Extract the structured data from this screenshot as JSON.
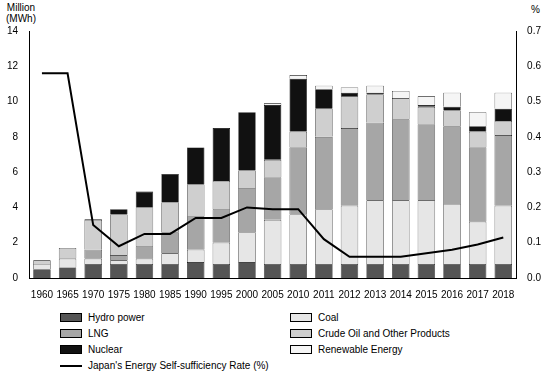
{
  "chart_data": {
    "type": "bar",
    "stacked": true,
    "ylabel": [
      "Million",
      "(MWh)"
    ],
    "y2label": "%",
    "categories": [
      "1960",
      "1965",
      "1970",
      "1975",
      "1980",
      "1985",
      "1990",
      "1995",
      "2000",
      "2005",
      "2010",
      "2011",
      "2012",
      "2013",
      "2014",
      "2015",
      "2016",
      "2017",
      "2018"
    ],
    "series": [
      {
        "name": "Hydro power",
        "type": "bar",
        "color": "#555555",
        "values": [
          0.5,
          0.6,
          0.8,
          0.8,
          0.8,
          0.8,
          0.9,
          0.8,
          0.9,
          0.8,
          0.8,
          0.8,
          0.8,
          0.8,
          0.8,
          0.8,
          0.8,
          0.8,
          0.8
        ]
      },
      {
        "name": "Coal",
        "type": "bar",
        "color": "#e6e6e6",
        "values": [
          0.3,
          0.5,
          0.3,
          0.2,
          0.3,
          0.6,
          0.7,
          1.2,
          1.7,
          2.5,
          2.8,
          3.1,
          3.3,
          3.6,
          3.6,
          3.6,
          3.4,
          2.4,
          3.3
        ]
      },
      {
        "name": "LNG",
        "type": "bar",
        "color": "#a6a6a6",
        "values": [
          0,
          0,
          0.5,
          0.3,
          0.7,
          1.2,
          1.9,
          1.9,
          2.5,
          2.4,
          3.8,
          4.1,
          4.4,
          4.4,
          4.6,
          4.3,
          4.4,
          4.2,
          4.0
        ]
      },
      {
        "name": "Crude Oil and Other Products",
        "type": "bar",
        "color": "#cfcfcf",
        "values": [
          0.2,
          0.6,
          1.7,
          2.3,
          2.2,
          1.7,
          1.8,
          1.6,
          1.0,
          1.0,
          0.9,
          1.6,
          1.8,
          1.6,
          1.2,
          1.0,
          0.9,
          0.9,
          0.8
        ]
      },
      {
        "name": "Nuclear",
        "type": "bar",
        "color": "#111111",
        "values": [
          0,
          0,
          0.05,
          0.3,
          0.9,
          1.6,
          2.1,
          3.0,
          3.3,
          3.1,
          3.0,
          1.1,
          0.2,
          0.1,
          0,
          0.1,
          0.2,
          0.3,
          0.7
        ]
      },
      {
        "name": "Renewable Energy",
        "type": "bar",
        "color": "#f5f5f5",
        "values": [
          0,
          0,
          0,
          0,
          0,
          0,
          0,
          0,
          0,
          0.1,
          0.2,
          0.2,
          0.3,
          0.4,
          0.4,
          0.5,
          0.8,
          0.8,
          0.9
        ]
      },
      {
        "name": "Japan's Energy Self-sufficiency Rate (%)",
        "type": "line",
        "axis": "y2",
        "color": "#000000",
        "line_style": "solid",
        "values": [
          0.58,
          0.58,
          0.15,
          0.09,
          0.125,
          0.125,
          0.17,
          0.17,
          0.2,
          0.195,
          0.195,
          0.11,
          0.06,
          0.06,
          0.06,
          0.07,
          0.08,
          0.095,
          0.115
        ]
      }
    ],
    "ylim": [
      0,
      14
    ],
    "yticks": [
      0,
      2,
      4,
      6,
      8,
      10,
      12,
      14
    ],
    "y2lim": [
      0,
      0.7
    ],
    "y2ticks": [
      {
        "value": 0,
        "label": "0.0"
      },
      {
        "value": 0.1,
        "label": "0.1"
      },
      {
        "value": 0.2,
        "label": "0.2"
      },
      {
        "value": 0.3,
        "label": "0.3"
      },
      {
        "value": 0.4,
        "label": "0.4"
      },
      {
        "value": 0.5,
        "label": "0.5"
      },
      {
        "value": 0.6,
        "label": "0.6"
      },
      {
        "value": 0.7,
        "label": "0.7"
      }
    ],
    "grid": false,
    "legend": "bottom"
  }
}
